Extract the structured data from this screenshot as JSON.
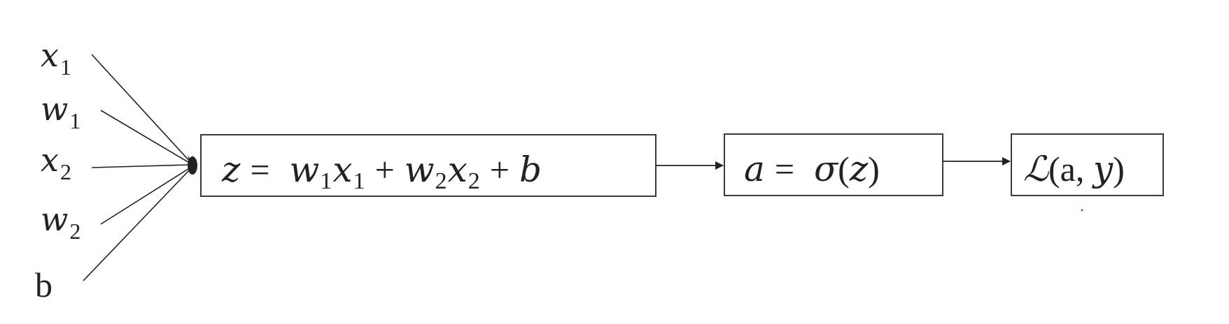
{
  "inputs": [
    {
      "name": "x",
      "sub": "1"
    },
    {
      "name": "w",
      "sub": "1"
    },
    {
      "name": "x",
      "sub": "2"
    },
    {
      "name": "w",
      "sub": "2"
    },
    {
      "name": "b",
      "sub": ""
    }
  ],
  "node_z": {
    "lhs": "z",
    "eq": "=",
    "terms": [
      {
        "name": "w",
        "sub": "1"
      },
      {
        "name": "x",
        "sub": "1"
      },
      {
        "op": "+"
      },
      {
        "name": "w",
        "sub": "2"
      },
      {
        "name": "x",
        "sub": "2"
      },
      {
        "op": "+"
      },
      {
        "name": "b",
        "sub": ""
      }
    ]
  },
  "node_a": {
    "lhs": "a",
    "eq": "=",
    "func": "σ",
    "arg": "z"
  },
  "node_loss": {
    "symbol": "ℒ",
    "args": [
      "a",
      "y"
    ]
  },
  "colors": {
    "stroke": "#222222",
    "box_border": "#3a3a3a",
    "background": "#ffffff",
    "text": "#222222"
  }
}
